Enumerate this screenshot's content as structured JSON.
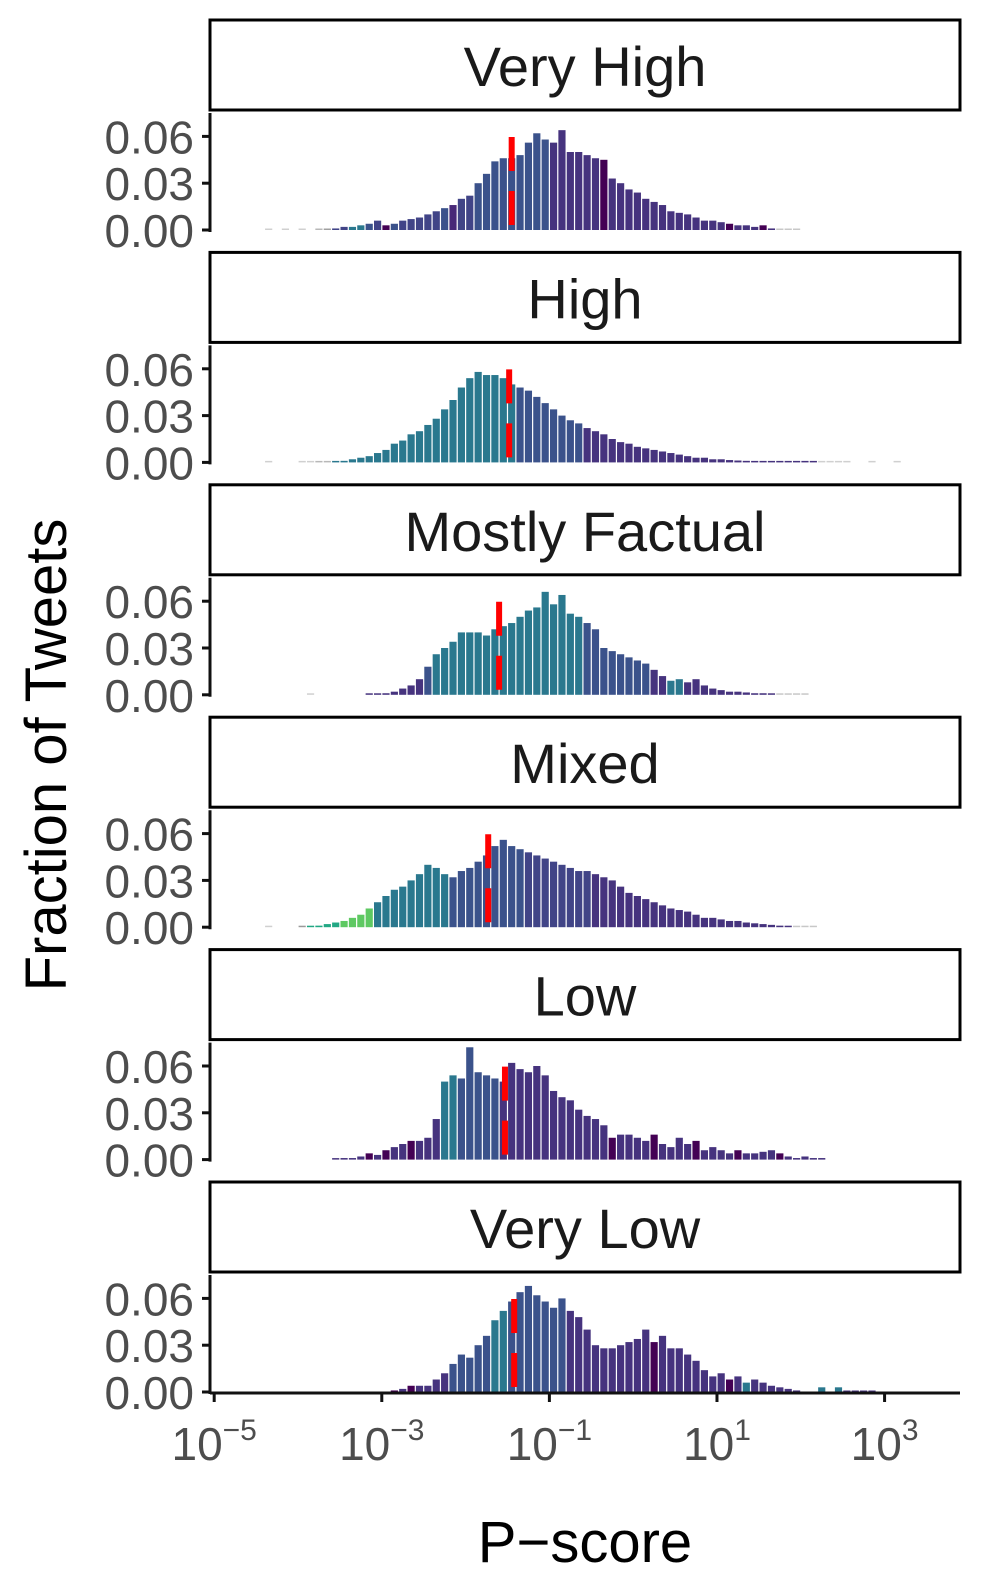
{
  "chart_data": {
    "type": "bar",
    "ylabel": "Fraction of Tweets",
    "xlabel": "P−score",
    "x_scale": "log10",
    "xlim_log10": [
      -5.05,
      3.9
    ],
    "ylim": [
      0,
      0.075
    ],
    "y_ticks": [
      {
        "value": 0.0,
        "label": "0.00"
      },
      {
        "value": 0.03,
        "label": "0.03"
      },
      {
        "value": 0.06,
        "label": "0.06"
      }
    ],
    "x_ticks": [
      {
        "value": -5,
        "base": "10",
        "exp": "−5"
      },
      {
        "value": -3,
        "base": "10",
        "exp": "−3"
      },
      {
        "value": -1,
        "base": "10",
        "exp": "−1"
      },
      {
        "value": 1,
        "base": "10",
        "exp": "1"
      },
      {
        "value": 3,
        "base": "10",
        "exp": "3"
      }
    ],
    "bin_start_log10": -4.4,
    "bin_width_log10": 0.1,
    "median_line": {
      "color": "#ff0000",
      "style": "dashed"
    },
    "panels": [
      {
        "label": "Very High",
        "median_log10": -1.45,
        "values": [
          0.0005,
          0,
          0.0005,
          0,
          0.0005,
          0,
          0.0005,
          0.0005,
          0.001,
          0.002,
          0.002,
          0.003,
          0.004,
          0.006,
          0.003,
          0.004,
          0.006,
          0.007,
          0.008,
          0.01,
          0.012,
          0.014,
          0.016,
          0.02,
          0.022,
          0.03,
          0.036,
          0.044,
          0.046,
          0.046,
          0.048,
          0.056,
          0.062,
          0.058,
          0.056,
          0.064,
          0.05,
          0.05,
          0.048,
          0.046,
          0.045,
          0.033,
          0.03,
          0.026,
          0.024,
          0.02,
          0.018,
          0.016,
          0.012,
          0.011,
          0.01,
          0.008,
          0.006,
          0.006,
          0.005,
          0.004,
          0.003,
          0.003,
          0.002,
          0.003,
          0.001,
          0.0008,
          0.0005,
          0.0005
        ],
        "colors": [
          "#d0d0d0",
          "#d0d0d0",
          "#d0d0d0",
          "#d0d0d0",
          "#d0d0d0",
          "#d0d0d0",
          "#b8b8b8",
          "#a0a0a0",
          "#414487",
          "#414487",
          "#2a788e",
          "#2a788e",
          "#3b528b",
          "#414487",
          "#440154",
          "#3b528b",
          "#414487",
          "#414487",
          "#414487",
          "#414487",
          "#414487",
          "#3b528b",
          "#482878",
          "#414487",
          "#414487",
          "#3b528b",
          "#3b528b",
          "#3b528b",
          "#3b528b",
          "#3b528b",
          "#3b528b",
          "#3b528b",
          "#3b528b",
          "#3b528b",
          "#46337e",
          "#46337e",
          "#46337e",
          "#46337e",
          "#46337e",
          "#46337e",
          "#440154",
          "#46337e",
          "#46337e",
          "#46337e",
          "#46337e",
          "#46337e",
          "#46337e",
          "#46337e",
          "#46337e",
          "#46337e",
          "#46337e",
          "#46337e",
          "#46337e",
          "#46337e",
          "#46337e",
          "#440154",
          "#46337e",
          "#46337e",
          "#46337e",
          "#440154",
          "#46337e",
          "#c8c8c8",
          "#c8c8c8",
          "#c8c8c8"
        ]
      },
      {
        "label": "High",
        "median_log10": -1.48,
        "values": [
          0.0004,
          0,
          0,
          0,
          0.0004,
          0.0004,
          0.0006,
          0.0008,
          0.0008,
          0.001,
          0.002,
          0.003,
          0.004,
          0.006,
          0.008,
          0.012,
          0.014,
          0.018,
          0.02,
          0.024,
          0.028,
          0.034,
          0.04,
          0.048,
          0.054,
          0.058,
          0.056,
          0.056,
          0.054,
          0.05,
          0.048,
          0.046,
          0.042,
          0.038,
          0.034,
          0.03,
          0.027,
          0.025,
          0.022,
          0.02,
          0.018,
          0.015,
          0.013,
          0.012,
          0.01,
          0.009,
          0.008,
          0.007,
          0.006,
          0.005,
          0.004,
          0.003,
          0.003,
          0.002,
          0.002,
          0.0015,
          0.0012,
          0.001,
          0.0008,
          0.0008,
          0.0006,
          0.0005,
          0.0004,
          0.0004,
          0.0003,
          0.0003,
          0.0003,
          0.0003,
          0.0003,
          0.0003,
          0,
          0,
          0.0002,
          0,
          0,
          0.0002
        ],
        "colors": [
          "#d0d0d0",
          "#d0d0d0",
          "#d0d0d0",
          "#d0d0d0",
          "#d0d0d0",
          "#d0d0d0",
          "#b8b8b8",
          "#b8b8b8",
          "#2a788e",
          "#2a788e",
          "#2a788e",
          "#2a788e",
          "#2a788e",
          "#2a788e",
          "#2a788e",
          "#2a788e",
          "#2a788e",
          "#2a788e",
          "#2a788e",
          "#2a788e",
          "#2a788e",
          "#2a788e",
          "#2a788e",
          "#2a788e",
          "#2a788e",
          "#2a788e",
          "#2a788e",
          "#2a788e",
          "#2a788e",
          "#2a788e",
          "#3b528b",
          "#3b528b",
          "#3b528b",
          "#3b528b",
          "#3b528b",
          "#3b528b",
          "#3b528b",
          "#3b528b",
          "#46337e",
          "#46337e",
          "#46337e",
          "#46337e",
          "#46337e",
          "#46337e",
          "#46337e",
          "#46337e",
          "#46337e",
          "#46337e",
          "#46337e",
          "#46337e",
          "#46337e",
          "#46337e",
          "#46337e",
          "#46337e",
          "#46337e",
          "#46337e",
          "#46337e",
          "#46337e",
          "#46337e",
          "#46337e",
          "#46337e",
          "#46337e",
          "#46337e",
          "#46337e",
          "#46337e",
          "#46337e",
          "#d0d0d0",
          "#d0d0d0",
          "#d0d0d0",
          "#d0d0d0",
          "#d0d0d0",
          "#d0d0d0",
          "#d0d0d0",
          "#d0d0d0",
          "#d0d0d0",
          "#d0d0d0"
        ]
      },
      {
        "label": "Mostly Factual",
        "median_log10": -1.6,
        "values": [
          0,
          0,
          0,
          0,
          0,
          0.0004,
          0,
          0,
          0,
          0,
          0,
          0,
          0.0005,
          0.0008,
          0.001,
          0.002,
          0.004,
          0.006,
          0.01,
          0.018,
          0.026,
          0.03,
          0.034,
          0.04,
          0.04,
          0.04,
          0.038,
          0.042,
          0.044,
          0.046,
          0.05,
          0.054,
          0.056,
          0.066,
          0.058,
          0.064,
          0.052,
          0.05,
          0.046,
          0.042,
          0.03,
          0.028,
          0.026,
          0.024,
          0.022,
          0.02,
          0.016,
          0.012,
          0.009,
          0.01,
          0.008,
          0.01,
          0.006,
          0.004,
          0.003,
          0.002,
          0.002,
          0.0015,
          0.001,
          0.001,
          0.0008,
          0.0006,
          0.0005,
          0.0005,
          0.0004
        ],
        "colors": [
          "#d0d0d0",
          "#d0d0d0",
          "#d0d0d0",
          "#d0d0d0",
          "#d0d0d0",
          "#d0d0d0",
          "#d0d0d0",
          "#d0d0d0",
          "#d0d0d0",
          "#d0d0d0",
          "#d0d0d0",
          "#d0d0d0",
          "#46337e",
          "#46337e",
          "#46337e",
          "#46337e",
          "#46337e",
          "#46337e",
          "#46337e",
          "#3b528b",
          "#2a788e",
          "#2a788e",
          "#2a788e",
          "#2a788e",
          "#2a788e",
          "#2a788e",
          "#2a788e",
          "#2a788e",
          "#2a788e",
          "#2a788e",
          "#2a788e",
          "#2a788e",
          "#2a788e",
          "#2a788e",
          "#2a788e",
          "#2a788e",
          "#2a788e",
          "#2a788e",
          "#3b528b",
          "#3b528b",
          "#3b528b",
          "#3b528b",
          "#3b528b",
          "#3b528b",
          "#3b528b",
          "#3b528b",
          "#46337e",
          "#46337e",
          "#2a788e",
          "#2a788e",
          "#46337e",
          "#46337e",
          "#46337e",
          "#46337e",
          "#46337e",
          "#46337e",
          "#46337e",
          "#46337e",
          "#46337e",
          "#46337e",
          "#46337e",
          "#c8c8c8",
          "#c8c8c8",
          "#c8c8c8",
          "#c8c8c8"
        ]
      },
      {
        "label": "Mixed",
        "median_log10": -1.73,
        "values": [
          0.0004,
          0,
          0,
          0,
          0.0005,
          0.0008,
          0.001,
          0.002,
          0.003,
          0.004,
          0.006,
          0.008,
          0.012,
          0.016,
          0.02,
          0.024,
          0.026,
          0.03,
          0.034,
          0.04,
          0.038,
          0.034,
          0.032,
          0.036,
          0.038,
          0.042,
          0.046,
          0.052,
          0.056,
          0.052,
          0.05,
          0.048,
          0.046,
          0.044,
          0.042,
          0.04,
          0.038,
          0.036,
          0.036,
          0.034,
          0.032,
          0.03,
          0.026,
          0.022,
          0.02,
          0.018,
          0.016,
          0.014,
          0.012,
          0.011,
          0.01,
          0.008,
          0.006,
          0.006,
          0.005,
          0.004,
          0.004,
          0.003,
          0.0025,
          0.002,
          0.0015,
          0.001,
          0.0008,
          0.0006,
          0.0005,
          0.0004
        ],
        "colors": [
          "#d0d0d0",
          "#d0d0d0",
          "#d0d0d0",
          "#d0d0d0",
          "#9a9a9a",
          "#22a884",
          "#22a884",
          "#22a884",
          "#22a884",
          "#5ec962",
          "#5ec962",
          "#5ec962",
          "#5ec962",
          "#2a788e",
          "#2a788e",
          "#2a788e",
          "#2a788e",
          "#2a788e",
          "#2a788e",
          "#2a788e",
          "#2a788e",
          "#2a788e",
          "#3b528b",
          "#3b528b",
          "#3b528b",
          "#3b528b",
          "#3b528b",
          "#3b528b",
          "#3b528b",
          "#3b528b",
          "#3b528b",
          "#414487",
          "#414487",
          "#414487",
          "#414487",
          "#414487",
          "#414487",
          "#414487",
          "#414487",
          "#46337e",
          "#46337e",
          "#46337e",
          "#46337e",
          "#46337e",
          "#46337e",
          "#46337e",
          "#46337e",
          "#46337e",
          "#46337e",
          "#46337e",
          "#46337e",
          "#46337e",
          "#46337e",
          "#46337e",
          "#46337e",
          "#46337e",
          "#46337e",
          "#46337e",
          "#46337e",
          "#46337e",
          "#46337e",
          "#46337e",
          "#46337e",
          "#c8c8c8",
          "#c8c8c8",
          "#c8c8c8"
        ]
      },
      {
        "label": "Low",
        "median_log10": -1.53,
        "values": [
          0,
          0,
          0,
          0,
          0,
          0,
          0,
          0,
          0.0005,
          0.001,
          0.001,
          0.002,
          0.004,
          0.003,
          0.006,
          0.008,
          0.01,
          0.012,
          0.012,
          0.014,
          0.026,
          0.05,
          0.054,
          0.052,
          0.072,
          0.056,
          0.054,
          0.052,
          0.05,
          0.062,
          0.058,
          0.056,
          0.06,
          0.054,
          0.044,
          0.04,
          0.038,
          0.032,
          0.028,
          0.026,
          0.022,
          0.014,
          0.016,
          0.016,
          0.014,
          0.012,
          0.016,
          0.01,
          0.008,
          0.014,
          0.01,
          0.012,
          0.006,
          0.008,
          0.006,
          0.004,
          0.006,
          0.004,
          0.004,
          0.005,
          0.006,
          0.004,
          0.002,
          0.001,
          0.002,
          0.001,
          0.001
        ],
        "colors": [
          "#d0d0d0",
          "#d0d0d0",
          "#d0d0d0",
          "#d0d0d0",
          "#d0d0d0",
          "#d0d0d0",
          "#d0d0d0",
          "#d0d0d0",
          "#46337e",
          "#46337e",
          "#46337e",
          "#46337e",
          "#440154",
          "#46337e",
          "#440154",
          "#46337e",
          "#46337e",
          "#440154",
          "#46337e",
          "#46337e",
          "#46337e",
          "#2a788e",
          "#2a788e",
          "#3b528b",
          "#3b528b",
          "#3b528b",
          "#3b528b",
          "#3b528b",
          "#46337e",
          "#46337e",
          "#46337e",
          "#46337e",
          "#46337e",
          "#46337e",
          "#46337e",
          "#46337e",
          "#46337e",
          "#46337e",
          "#46337e",
          "#46337e",
          "#46337e",
          "#440154",
          "#46337e",
          "#46337e",
          "#46337e",
          "#46337e",
          "#440154",
          "#46337e",
          "#46337e",
          "#46337e",
          "#46337e",
          "#440154",
          "#46337e",
          "#46337e",
          "#46337e",
          "#46337e",
          "#440154",
          "#46337e",
          "#46337e",
          "#46337e",
          "#46337e",
          "#440154",
          "#46337e",
          "#46337e",
          "#46337e",
          "#46337e",
          "#46337e"
        ]
      },
      {
        "label": "Very Low",
        "median_log10": -1.42,
        "values": [
          0,
          0,
          0,
          0,
          0,
          0,
          0,
          0,
          0,
          0,
          0,
          0,
          0,
          0,
          0,
          0.001,
          0.002,
          0.004,
          0.004,
          0.004,
          0.008,
          0.012,
          0.018,
          0.024,
          0.022,
          0.03,
          0.036,
          0.046,
          0.052,
          0.058,
          0.064,
          0.068,
          0.062,
          0.058,
          0.054,
          0.06,
          0.052,
          0.048,
          0.04,
          0.03,
          0.028,
          0.028,
          0.03,
          0.032,
          0.034,
          0.04,
          0.032,
          0.036,
          0.028,
          0.028,
          0.024,
          0.02,
          0.014,
          0.01,
          0.012,
          0.008,
          0.01,
          0.006,
          0.008,
          0.006,
          0.004,
          0.003,
          0.002,
          0.001,
          0,
          0,
          0.003,
          0,
          0.003,
          0.0008,
          0.0008,
          0.0008,
          0.0008
        ],
        "colors": [
          "#d0d0d0",
          "#d0d0d0",
          "#d0d0d0",
          "#d0d0d0",
          "#d0d0d0",
          "#d0d0d0",
          "#d0d0d0",
          "#d0d0d0",
          "#d0d0d0",
          "#d0d0d0",
          "#d0d0d0",
          "#d0d0d0",
          "#d0d0d0",
          "#d0d0d0",
          "#d0d0d0",
          "#440154",
          "#46337e",
          "#440154",
          "#46337e",
          "#46337e",
          "#46337e",
          "#46337e",
          "#3b528b",
          "#3b528b",
          "#3b528b",
          "#3b528b",
          "#3b528b",
          "#2a788e",
          "#2a788e",
          "#3b528b",
          "#3b528b",
          "#3b528b",
          "#3b528b",
          "#3b528b",
          "#3b528b",
          "#3b528b",
          "#46337e",
          "#46337e",
          "#46337e",
          "#46337e",
          "#46337e",
          "#46337e",
          "#46337e",
          "#46337e",
          "#46337e",
          "#46337e",
          "#440154",
          "#46337e",
          "#46337e",
          "#46337e",
          "#46337e",
          "#46337e",
          "#46337e",
          "#46337e",
          "#46337e",
          "#440154",
          "#46337e",
          "#2a788e",
          "#46337e",
          "#46337e",
          "#46337e",
          "#46337e",
          "#46337e",
          "#46337e",
          "#46337e",
          "#46337e",
          "#2a788e",
          "#46337e",
          "#2a788e",
          "#46337e",
          "#46337e",
          "#46337e",
          "#46337e"
        ]
      }
    ]
  }
}
